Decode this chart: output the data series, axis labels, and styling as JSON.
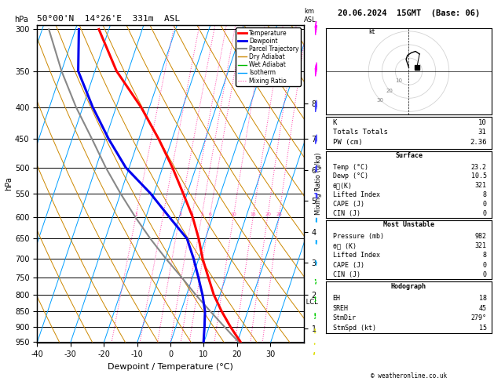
{
  "title_left": "50°00'N  14°26'E  331m  ASL",
  "title_right": "20.06.2024  15GMT  (Base: 06)",
  "xlabel": "Dewpoint / Temperature (°C)",
  "pressure_ticks": [
    300,
    350,
    400,
    450,
    500,
    550,
    600,
    650,
    700,
    750,
    800,
    850,
    900,
    950
  ],
  "temp_ticks": [
    -40,
    -30,
    -20,
    -10,
    0,
    10,
    20,
    30
  ],
  "isotherm_color": "#009FFF",
  "dry_adiabat_color": "#CC8800",
  "wet_adiabat_color": "#00BB00",
  "mixing_ratio_color": "#FF44AA",
  "mixing_ratio_values": [
    1,
    2,
    3,
    4,
    5,
    6,
    10,
    15,
    20,
    25
  ],
  "temp_profile_color": "#FF0000",
  "dewp_profile_color": "#0000EE",
  "parcel_color": "#888888",
  "legend_items": [
    {
      "label": "Temperature",
      "color": "#FF0000",
      "lw": 2.0,
      "ls": "solid"
    },
    {
      "label": "Dewpoint",
      "color": "#0000EE",
      "lw": 2.0,
      "ls": "solid"
    },
    {
      "label": "Parcel Trajectory",
      "color": "#888888",
      "lw": 1.5,
      "ls": "solid"
    },
    {
      "label": "Dry Adiabat",
      "color": "#CC8800",
      "lw": 1.0,
      "ls": "solid"
    },
    {
      "label": "Wet Adiabat",
      "color": "#00BB00",
      "lw": 1.0,
      "ls": "solid"
    },
    {
      "label": "Isotherm",
      "color": "#009FFF",
      "lw": 1.0,
      "ls": "solid"
    },
    {
      "label": "Mixing Ratio",
      "color": "#FF44AA",
      "lw": 0.8,
      "ls": "dotted"
    }
  ],
  "pressure_data": [
    982,
    950,
    925,
    900,
    850,
    800,
    750,
    700,
    650,
    600,
    550,
    500,
    450,
    400,
    350,
    300
  ],
  "temp_data": [
    23.2,
    20.8,
    18.6,
    16.4,
    12.2,
    8.2,
    4.8,
    1.2,
    -2.0,
    -6.0,
    -11.2,
    -17.0,
    -24.0,
    -32.5,
    -43.5,
    -53.0
  ],
  "dewp_data": [
    10.5,
    9.8,
    9.2,
    8.6,
    7.2,
    4.8,
    1.8,
    -1.5,
    -5.5,
    -13.0,
    -21.0,
    -31.0,
    -39.0,
    -47.0,
    -55.0,
    -59.0
  ],
  "parcel_data": [
    23.2,
    20.2,
    17.4,
    14.6,
    8.8,
    2.8,
    -3.2,
    -9.8,
    -16.5,
    -23.2,
    -30.0,
    -37.0,
    -44.0,
    -52.0,
    -60.0,
    -68.0
  ],
  "lcl_pressure": 822,
  "km_ticks": [
    1,
    2,
    3,
    4,
    5,
    6,
    7,
    8
  ],
  "km_pressures": [
    905,
    800,
    710,
    635,
    565,
    505,
    450,
    395
  ],
  "stats": {
    "K": 10,
    "Totals_Totals": 31,
    "PW_cm": 2.36,
    "Surf_Temp": 23.2,
    "Surf_Dewp": 10.5,
    "Surf_theta_e": 321,
    "Surf_LI": 8,
    "Surf_CAPE": 0,
    "Surf_CIN": 0,
    "MU_Pressure": 982,
    "MU_theta_e": 321,
    "MU_LI": 8,
    "MU_CAPE": 0,
    "MU_CIN": 0,
    "EH": 18,
    "SREH": 45,
    "StmDir": 279,
    "StmSpd_kt": 15
  },
  "wind_barbs_right": [
    {
      "p": 300,
      "color": "#FF00FF",
      "u": 28,
      "v": -12
    },
    {
      "p": 350,
      "color": "#FF00FF",
      "u": 25,
      "v": -10
    },
    {
      "p": 400,
      "color": "#4444FF",
      "u": 22,
      "v": -8
    },
    {
      "p": 450,
      "color": "#4444FF",
      "u": 20,
      "v": -5
    },
    {
      "p": 500,
      "color": "#4444FF",
      "u": 18,
      "v": -2
    },
    {
      "p": 550,
      "color": "#4444FF",
      "u": 15,
      "v": 0
    },
    {
      "p": 600,
      "color": "#00AAFF",
      "u": 12,
      "v": 2
    },
    {
      "p": 650,
      "color": "#00AAFF",
      "u": 10,
      "v": 3
    },
    {
      "p": 700,
      "color": "#00AAFF",
      "u": 8,
      "v": 5
    },
    {
      "p": 750,
      "color": "#00CC00",
      "u": 5,
      "v": 6
    },
    {
      "p": 800,
      "color": "#00CC00",
      "u": 3,
      "v": 7
    },
    {
      "p": 850,
      "color": "#00CC00",
      "u": 2,
      "v": 8
    },
    {
      "p": 900,
      "color": "#DDDD00",
      "u": 0,
      "v": 7
    },
    {
      "p": 950,
      "color": "#DDDD00",
      "u": -2,
      "v": 6
    },
    {
      "p": 982,
      "color": "#DDDD00",
      "u": -3,
      "v": 5
    }
  ]
}
